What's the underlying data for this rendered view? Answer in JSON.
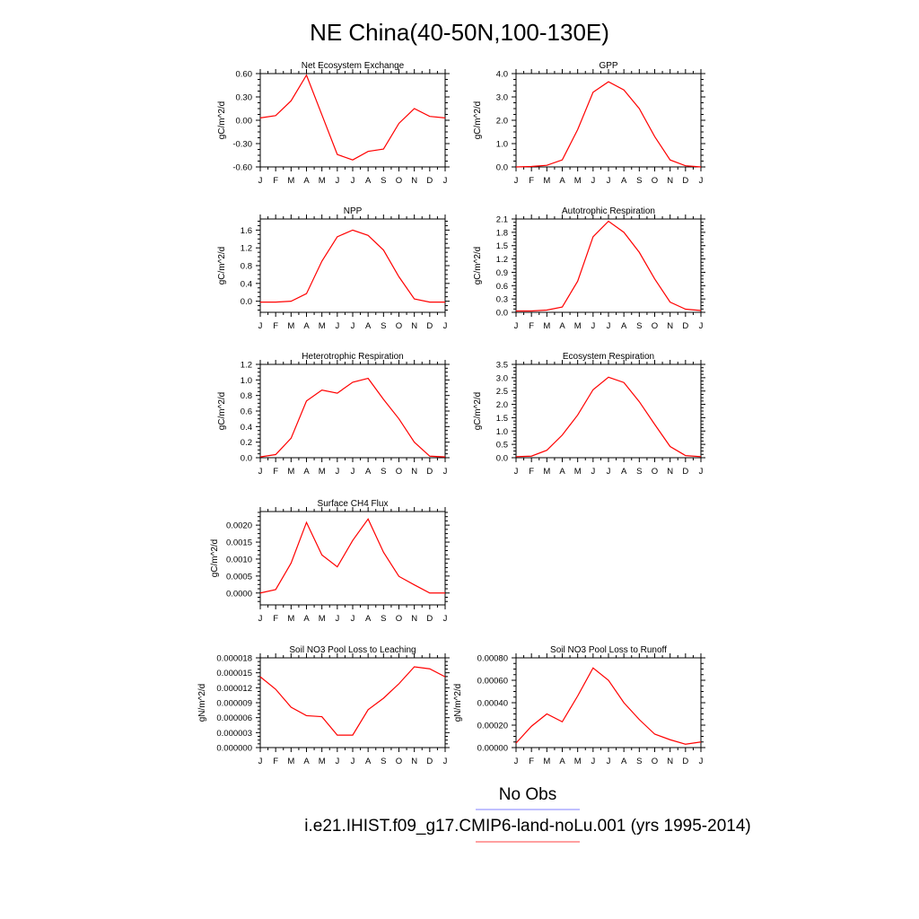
{
  "title": "NE China(40-50N,100-130E)",
  "legend": {
    "entries": [
      {
        "label": "No Obs",
        "color": "#8080ff"
      },
      {
        "label": "i.e21.IHIST.f09_g17.CMIP6-land-noLu.001 (yrs 1995-2014)",
        "color": "#ff4040"
      }
    ]
  },
  "colors": {
    "series": "#ff0000",
    "axis": "#000000"
  },
  "chart_data": [
    {
      "type": "line",
      "title": "Net Ecosystem Exchange",
      "ylabel": "gC/m^2/d",
      "x": [
        "J",
        "F",
        "M",
        "A",
        "M",
        "J",
        "J",
        "A",
        "S",
        "O",
        "N",
        "D",
        "J"
      ],
      "values": [
        0.03,
        0.06,
        0.25,
        0.58,
        0.07,
        -0.44,
        -0.51,
        -0.4,
        -0.37,
        -0.04,
        0.15,
        0.05,
        0.03
      ],
      "ylim": [
        -0.6,
        0.6
      ],
      "yticks": [
        "0.60",
        "0.30",
        "0.00",
        "-0.30",
        "-0.60"
      ]
    },
    {
      "type": "line",
      "title": "GPP",
      "ylabel": "gC/m^2/d",
      "x": [
        "J",
        "F",
        "M",
        "A",
        "M",
        "J",
        "J",
        "A",
        "S",
        "O",
        "N",
        "D",
        "J"
      ],
      "values": [
        0.0,
        0.02,
        0.07,
        0.3,
        1.6,
        3.2,
        3.65,
        3.3,
        2.5,
        1.3,
        0.3,
        0.05,
        0.0
      ],
      "ylim": [
        0,
        4
      ],
      "yticks": [
        "4.0",
        "3.0",
        "2.0",
        "1.0",
        "0.0"
      ]
    },
    {
      "type": "line",
      "title": "NPP",
      "ylabel": "gC/m^2/d",
      "x": [
        "J",
        "F",
        "M",
        "A",
        "M",
        "J",
        "J",
        "A",
        "S",
        "O",
        "N",
        "D",
        "J"
      ],
      "values": [
        -0.02,
        -0.02,
        0.0,
        0.17,
        0.9,
        1.45,
        1.6,
        1.48,
        1.15,
        0.55,
        0.05,
        -0.02,
        -0.02
      ],
      "ylim": [
        -0.25,
        1.85
      ],
      "yticks": [
        "1.6",
        "1.2",
        "0.8",
        "0.4",
        "0.0"
      ]
    },
    {
      "type": "line",
      "title": "Autotrophic Respiration",
      "ylabel": "gC/m^2/d",
      "x": [
        "J",
        "F",
        "M",
        "A",
        "M",
        "J",
        "J",
        "A",
        "S",
        "O",
        "N",
        "D",
        "J"
      ],
      "values": [
        0.03,
        0.03,
        0.05,
        0.12,
        0.7,
        1.7,
        2.05,
        1.8,
        1.35,
        0.75,
        0.23,
        0.07,
        0.04
      ],
      "ylim": [
        0,
        2.1
      ],
      "yticks": [
        "2.1",
        "1.8",
        "1.5",
        "1.2",
        "0.9",
        "0.6",
        "0.3",
        "0.0"
      ]
    },
    {
      "type": "line",
      "title": "Heterotrophic Respiration",
      "ylabel": "gC/m^2/d",
      "x": [
        "J",
        "F",
        "M",
        "A",
        "M",
        "J",
        "J",
        "A",
        "S",
        "O",
        "N",
        "D",
        "J"
      ],
      "values": [
        0.01,
        0.04,
        0.25,
        0.73,
        0.87,
        0.83,
        0.97,
        1.02,
        0.75,
        0.5,
        0.2,
        0.02,
        0.01
      ],
      "ylim": [
        0,
        1.2
      ],
      "yticks": [
        "1.2",
        "1.0",
        "0.8",
        "0.6",
        "0.4",
        "0.2",
        "0.0"
      ]
    },
    {
      "type": "line",
      "title": "Ecosystem Respiration",
      "ylabel": "gC/m^2/d",
      "x": [
        "J",
        "F",
        "M",
        "A",
        "M",
        "J",
        "J",
        "A",
        "S",
        "O",
        "N",
        "D",
        "J"
      ],
      "values": [
        0.04,
        0.06,
        0.28,
        0.85,
        1.6,
        2.55,
        3.02,
        2.82,
        2.1,
        1.25,
        0.42,
        0.08,
        0.04
      ],
      "ylim": [
        0,
        3.5
      ],
      "yticks": [
        "3.5",
        "3.0",
        "2.5",
        "2.0",
        "1.5",
        "1.0",
        "0.5",
        "0.0"
      ]
    },
    {
      "type": "line",
      "title": "Surface CH4 Flux",
      "ylabel": "gC/m^2/d",
      "x": [
        "J",
        "F",
        "M",
        "A",
        "M",
        "J",
        "J",
        "A",
        "S",
        "O",
        "N",
        "D",
        "J"
      ],
      "values": [
        0.0,
        0.0001,
        0.00088,
        0.00208,
        0.00112,
        0.00077,
        0.00155,
        0.00218,
        0.0012,
        0.00049,
        0.00024,
        0.0,
        0.0
      ],
      "ylim": [
        -0.00035,
        0.0024
      ],
      "yticks": [
        "0.0020",
        "0.0015",
        "0.0010",
        "0.0005",
        "0.0000"
      ]
    },
    {
      "type": "line",
      "title": "Soil NO3 Pool Loss to Leaching",
      "ylabel": "gN/m^2/d",
      "x": [
        "J",
        "F",
        "M",
        "A",
        "M",
        "J",
        "J",
        "A",
        "S",
        "O",
        "N",
        "D",
        "J"
      ],
      "values": [
        1.42e-05,
        1.17e-05,
        8.1e-06,
        6.4e-06,
        6.2e-06,
        2.5e-06,
        2.5e-06,
        7.6e-06,
        9.9e-06,
        1.28e-05,
        1.62e-05,
        1.58e-05,
        1.42e-05
      ],
      "ylim": [
        0,
        1.8e-05
      ],
      "yticks": [
        "0.000018",
        "0.000015",
        "0.000012",
        "0.000009",
        "0.000006",
        "0.000003",
        "0.000000"
      ]
    },
    {
      "type": "line",
      "title": "Soil NO3 Pool Loss to Runoff",
      "ylabel": "gN/m^2/d",
      "x": [
        "J",
        "F",
        "M",
        "A",
        "M",
        "J",
        "J",
        "A",
        "S",
        "O",
        "N",
        "D",
        "J"
      ],
      "values": [
        4e-05,
        0.00019,
        0.0003,
        0.00023,
        0.00046,
        0.00071,
        0.0006,
        0.0004,
        0.00025,
        0.00012,
        7e-05,
        3e-05,
        5e-05
      ],
      "ylim": [
        0,
        0.0008
      ],
      "yticks": [
        "0.00080",
        "0.00060",
        "0.00040",
        "0.00020",
        "0.00000"
      ]
    }
  ]
}
